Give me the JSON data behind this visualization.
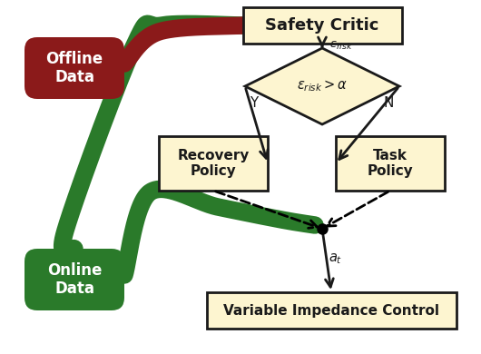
{
  "bg_color": "#ffffff",
  "box_fill": "#fdf5d0",
  "box_edge": "#1a1a1a",
  "dark_red": "#8b1a1a",
  "dark_green": "#2a7a2a",
  "offline_fill": "#8b1a1a",
  "online_fill": "#2a7a2a",
  "text_color_white": "#ffffff",
  "text_color_dark": "#1a1a1a",
  "arrow_color": "#1a1a1a",
  "safety_critic_text": "Safety Critic",
  "recovery_text": "Recovery\nPolicy",
  "task_text": "Task\nPolicy",
  "vic_text": "Variable Impedance Control",
  "offline_text": "Offline\nData",
  "online_text": "Online\nData",
  "yes_label": "Y",
  "no_label": "N",
  "thick": 14
}
